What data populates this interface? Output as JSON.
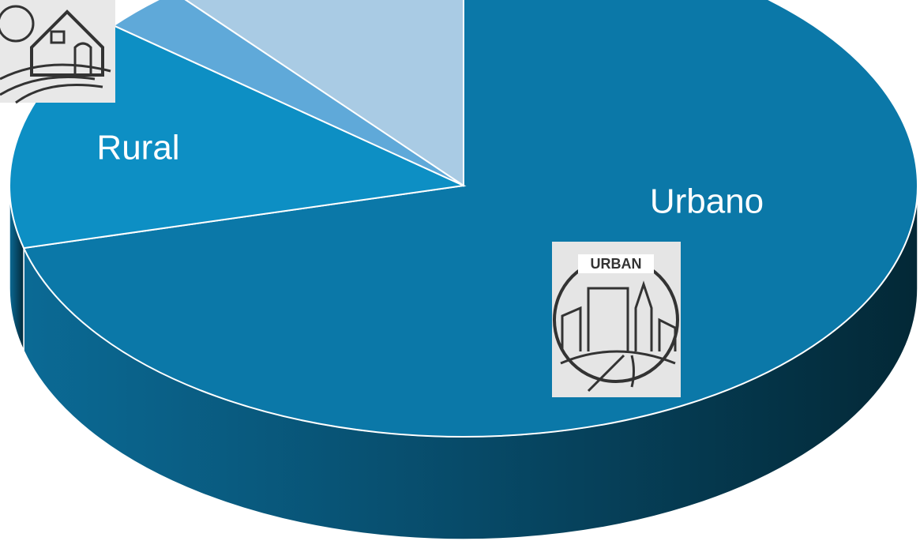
{
  "chart_data": {
    "type": "pie",
    "categories": [
      "Urbano",
      "Rural",
      null,
      null
    ],
    "values": [
      71,
      15,
      3,
      11
    ],
    "colors": [
      "#0b78a8",
      "#0d8fc4",
      "#5fa9d9",
      "#a9cbe4"
    ],
    "annotations": [
      "URBAN"
    ]
  }
}
